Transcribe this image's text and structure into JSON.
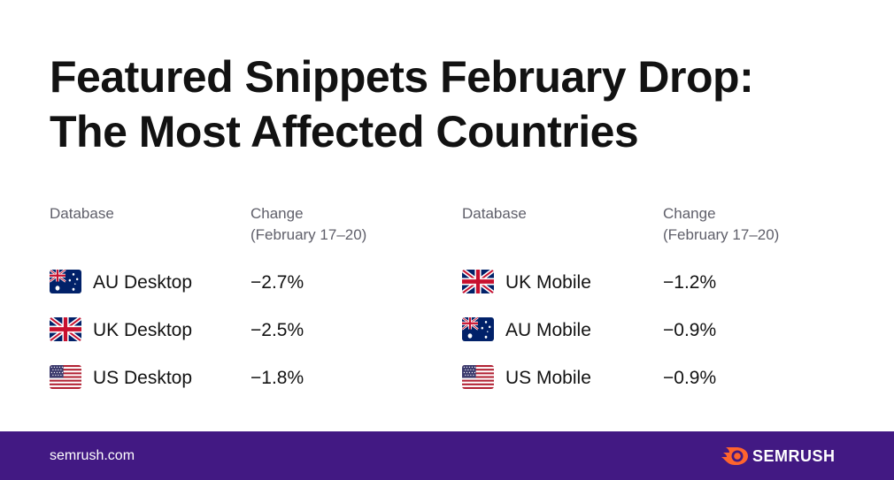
{
  "title": {
    "line1": "Featured Snippets February Drop:",
    "line2": "The Most Affected Countries"
  },
  "chart_data": {
    "type": "table",
    "columns": [
      "Database",
      "Change (February 17–20)"
    ],
    "header": {
      "database": "Database",
      "change_line1": "Change",
      "change_line2": "(February 17–20)"
    },
    "tables": [
      {
        "rows": [
          {
            "flag": "australia-flag-icon",
            "database": "AU Desktop",
            "change": "−2.7%",
            "value": -2.7
          },
          {
            "flag": "uk-flag-icon",
            "database": "UK Desktop",
            "change": "−2.5%",
            "value": -2.5
          },
          {
            "flag": "us-flag-icon",
            "database": "US Desktop",
            "change": "−1.8%",
            "value": -1.8
          }
        ]
      },
      {
        "rows": [
          {
            "flag": "uk-flag-icon",
            "database": "UK Mobile",
            "change": "−1.2%",
            "value": -1.2
          },
          {
            "flag": "australia-flag-icon",
            "database": "AU Mobile",
            "change": "−0.9%",
            "value": -0.9
          },
          {
            "flag": "us-flag-icon",
            "database": "US Mobile",
            "change": "−0.9%",
            "value": -0.9
          }
        ]
      }
    ]
  },
  "footer": {
    "site": "semrush.com",
    "brand": "SEMRUSH",
    "logo_icon": "semrush-flame-icon"
  },
  "colors": {
    "footer_bg": "#421983",
    "brand_orange": "#FF642D",
    "text": "#121212",
    "muted": "#5f5f6a"
  }
}
